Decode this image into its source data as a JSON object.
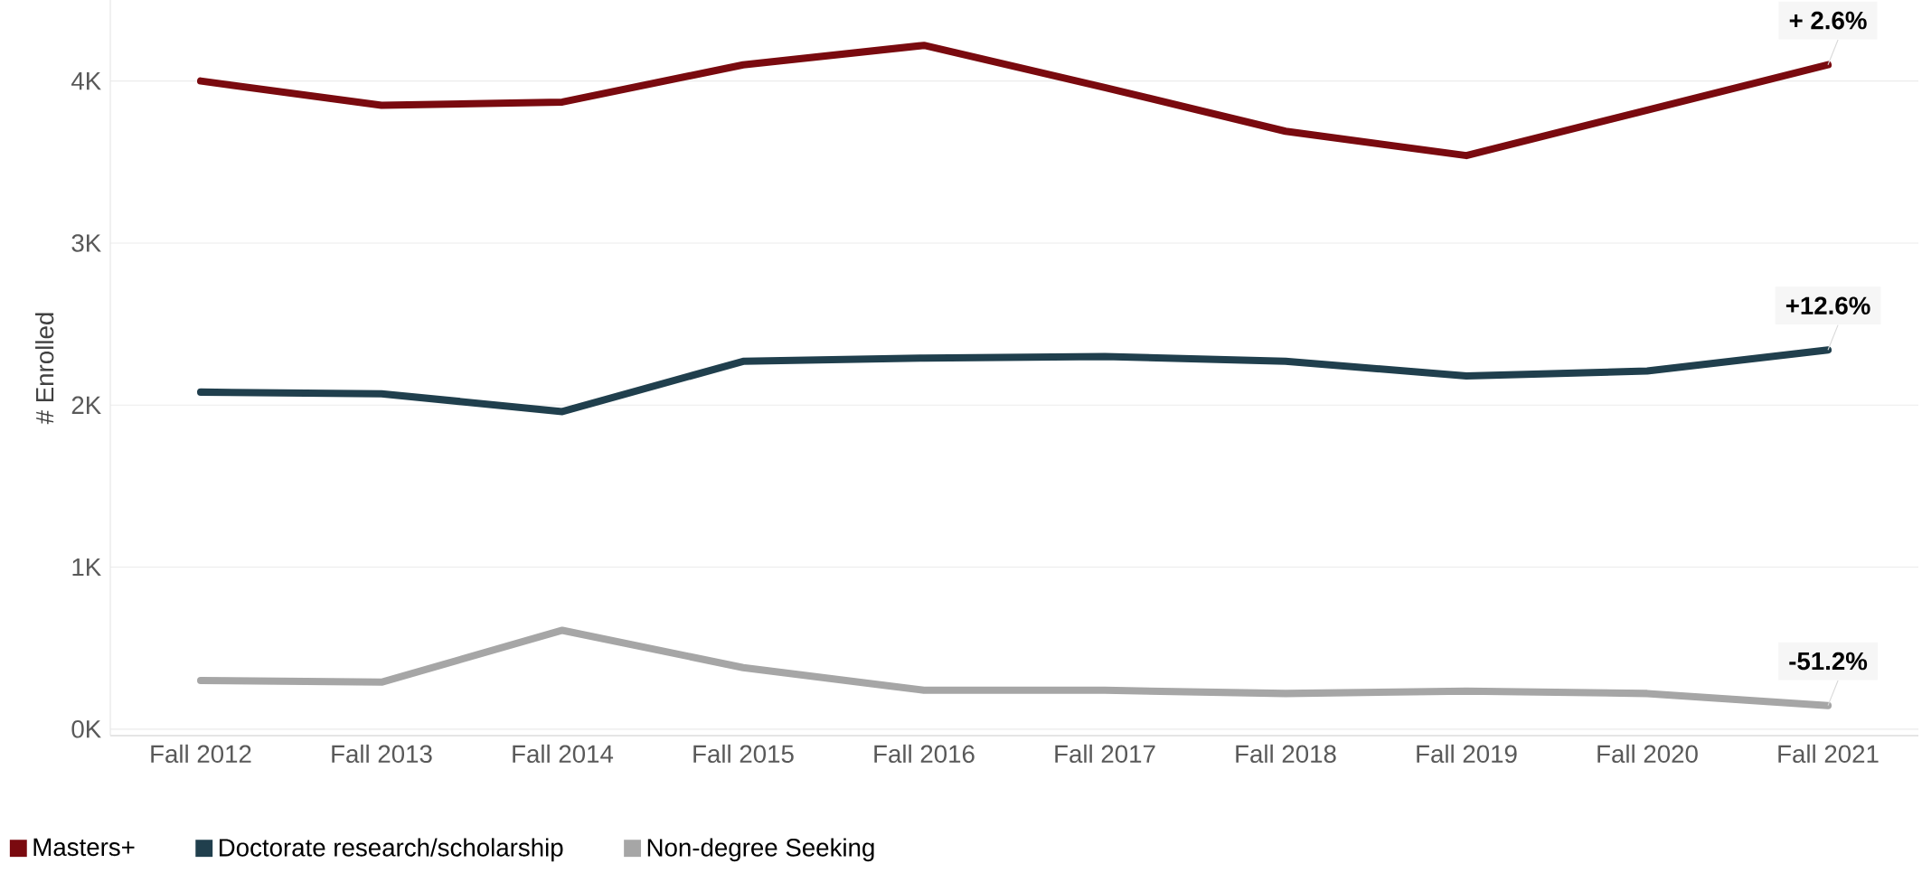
{
  "chart_data": {
    "type": "line",
    "ylabel": "# Enrolled",
    "categories": [
      "Fall 2012",
      "Fall 2013",
      "Fall 2014",
      "Fall 2015",
      "Fall 2016",
      "Fall 2017",
      "Fall 2018",
      "Fall 2019",
      "Fall 2020",
      "Fall 2021"
    ],
    "series": [
      {
        "name": "Masters+",
        "color": "#7a0a0f",
        "values": [
          4000,
          3850,
          3870,
          4100,
          4220,
          3960,
          3690,
          3540,
          3820,
          4100
        ]
      },
      {
        "name": "Doctorate research/scholarship",
        "color": "#203f4d",
        "values": [
          2080,
          2070,
          1960,
          2270,
          2290,
          2300,
          2270,
          2180,
          2210,
          2340
        ]
      },
      {
        "name": "Non-degree Seeking",
        "color": "#a6a6a6",
        "values": [
          300,
          290,
          610,
          380,
          240,
          240,
          220,
          235,
          220,
          146
        ]
      }
    ],
    "ylim": [
      -40,
      4500
    ],
    "yticks": [
      {
        "value": 0,
        "label": "0K"
      },
      {
        "value": 1000,
        "label": "1K"
      },
      {
        "value": 2000,
        "label": "2K"
      },
      {
        "value": 3000,
        "label": "3K"
      },
      {
        "value": 4000,
        "label": "4K"
      }
    ],
    "grid": "y",
    "legend": "bottom",
    "marker": "none",
    "line_style": "solid",
    "annotations": [
      {
        "text": "+ 2.6%",
        "x": "Fall 2021",
        "y": 4100
      },
      {
        "text": "+12.6%",
        "x": "Fall 2021",
        "y": 2340
      },
      {
        "text": "-51.2%",
        "x": "Fall 2021",
        "y": 146
      }
    ]
  }
}
